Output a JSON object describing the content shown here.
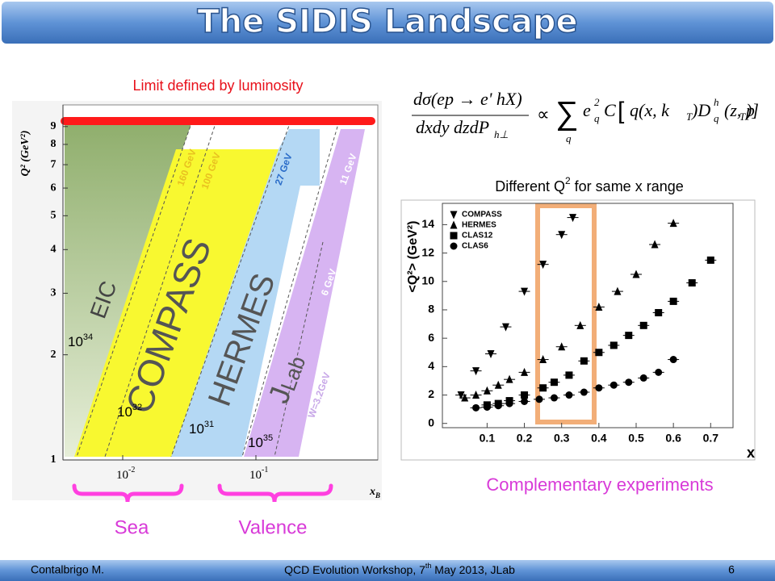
{
  "header": {
    "title": "The SIDIS Landscape"
  },
  "annotations": {
    "luminosity_limit": "Limit defined by luminosity",
    "q2_note": [
      "Different Q",
      "2",
      " for same x range"
    ],
    "complementary": "Complementary experiments",
    "sea": "Sea",
    "valence": "Valence"
  },
  "formula": [
    "dσ(ep → e' hX)",
    "dxdy dzdP",
    "h⊥",
    "∝",
    "∑",
    "q",
    "e",
    "2",
    "q",
    "C",
    "[",
    "q(x, k",
    "T",
    ")D",
    "h",
    "q",
    "(z, p",
    "T",
    ")]"
  ],
  "kinematics": {
    "y_axis_label": "Q² (GeV²)",
    "y_ticks": [
      "1",
      "2",
      "3",
      "4",
      "5",
      "6",
      "7",
      "8",
      "9"
    ],
    "x_ticks": [
      {
        "base": "10",
        "exponent": "-2"
      },
      {
        "base": "10",
        "exponent": "-1"
      }
    ],
    "x_axis_label": {
      "base": "x",
      "sub": "B"
    },
    "regions": [
      "EIC",
      "COMPASS",
      "HERMES"
    ],
    "jlab": {
      "base": "J",
      "sub": "Lab"
    },
    "beams": [
      "160 GeV",
      "100 GeV",
      "27 GeV",
      "11 GeV",
      "6 GeV",
      "W=3.2GeV"
    ],
    "luminosities": [
      {
        "base": "10",
        "exponent": "34"
      },
      {
        "base": "10",
        "exponent": "32"
      },
      {
        "base": "10",
        "exponent": "31"
      },
      {
        "base": "10",
        "exponent": "35"
      }
    ]
  },
  "chart_data": {
    "type": "scatter",
    "y_label": "<Q²> (GeV²)",
    "x_label": "x",
    "xlim": [
      -0.02,
      0.76
    ],
    "ylim": [
      -0.3,
      15.5
    ],
    "xticks": [
      0.1,
      0.2,
      0.3,
      0.4,
      0.5,
      0.6,
      0.7
    ],
    "yticks": [
      0,
      2,
      4,
      6,
      8,
      10,
      12,
      14
    ],
    "legend": "top-left",
    "series": [
      {
        "name": "COMPASS",
        "color": "#000000",
        "marker": "triangle-down",
        "x": [
          0.03,
          0.07,
          0.11,
          0.15,
          0.2,
          0.25,
          0.3,
          0.33
        ],
        "values": [
          2.0,
          3.7,
          4.9,
          6.8,
          9.3,
          11.2,
          13.3,
          14.5
        ]
      },
      {
        "name": "HERMES",
        "color": "#000000",
        "marker": "triangle-up",
        "x": [
          0.04,
          0.07,
          0.1,
          0.13,
          0.16,
          0.2,
          0.25,
          0.3,
          0.35,
          0.4,
          0.45,
          0.5,
          0.55,
          0.6
        ],
        "values": [
          1.8,
          2.0,
          2.3,
          2.7,
          3.1,
          3.6,
          4.5,
          5.4,
          6.9,
          8.2,
          9.3,
          10.5,
          12.6,
          14.1
        ]
      },
      {
        "name": "CLAS12",
        "color": "#000000",
        "marker": "square",
        "x": [
          0.1,
          0.13,
          0.16,
          0.2,
          0.25,
          0.28,
          0.32,
          0.36,
          0.4,
          0.44,
          0.48,
          0.52,
          0.56,
          0.6,
          0.65,
          0.7
        ],
        "values": [
          1.3,
          1.4,
          1.6,
          2.0,
          2.5,
          2.9,
          3.4,
          4.4,
          5.0,
          5.5,
          6.2,
          6.9,
          7.8,
          8.6,
          9.9,
          11.5
        ]
      },
      {
        "name": "CLAS6",
        "color": "#000000",
        "marker": "circle",
        "x": [
          0.07,
          0.1,
          0.13,
          0.16,
          0.2,
          0.24,
          0.28,
          0.32,
          0.36,
          0.4,
          0.44,
          0.48,
          0.52,
          0.56,
          0.6
        ],
        "values": [
          1.1,
          1.15,
          1.25,
          1.4,
          1.55,
          1.7,
          1.8,
          2.0,
          2.2,
          2.5,
          2.7,
          2.9,
          3.2,
          3.6,
          4.5
        ]
      }
    ]
  },
  "footer": {
    "author": "Contalbrigo M.",
    "event": [
      "QCD Evolution Workshop, 7",
      "th",
      " May 2013, JLab"
    ],
    "page": "6"
  }
}
